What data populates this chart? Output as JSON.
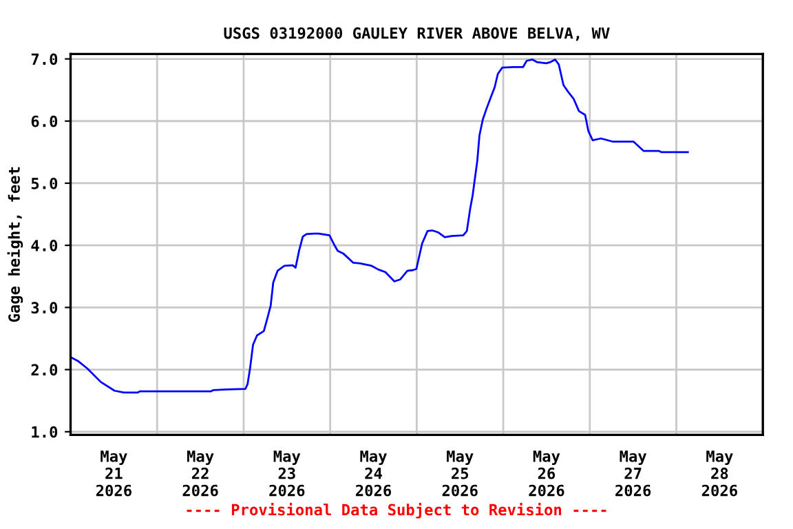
{
  "chart_data": {
    "type": "line",
    "title": "USGS 03192000 GAULEY RIVER ABOVE BELVA, WV",
    "ylabel": "Gage height, feet",
    "annotations": [
      "---- Provisional Data Subject to Revision ----"
    ],
    "x": [
      "2026-05-21T00:00",
      "2026-05-21T02:00",
      "2026-05-21T04:36",
      "2026-05-21T08:24",
      "2026-05-21T12:12",
      "2026-05-21T14:48",
      "2026-05-21T18:36",
      "2026-05-21T19:12",
      "2026-05-22T14:54",
      "2026-05-22T15:36",
      "2026-05-22T19:24",
      "2026-05-23T00:30",
      "2026-05-23T01:06",
      "2026-05-23T01:48",
      "2026-05-23T02:36",
      "2026-05-23T03:42",
      "2026-05-23T05:36",
      "2026-05-23T06:30",
      "2026-05-23T07:30",
      "2026-05-23T08:12",
      "2026-05-23T09:24",
      "2026-05-23T11:18",
      "2026-05-23T13:36",
      "2026-05-23T14:24",
      "2026-05-23T15:24",
      "2026-05-23T16:24",
      "2026-05-23T17:24",
      "2026-05-23T19:36",
      "2026-05-23T20:48",
      "2026-05-23T23:48",
      "2026-05-24T01:18",
      "2026-05-24T02:06",
      "2026-05-24T03:36",
      "2026-05-24T06:24",
      "2026-05-24T08:18",
      "2026-05-24T11:30",
      "2026-05-24T13:24",
      "2026-05-24T15:18",
      "2026-05-24T17:48",
      "2026-05-24T19:24",
      "2026-05-24T21:24",
      "2026-05-24T22:54",
      "2026-05-24T23:54",
      "2026-05-25T01:30",
      "2026-05-25T03:00",
      "2026-05-25T04:18",
      "2026-05-25T05:54",
      "2026-05-25T07:48",
      "2026-05-25T09:42",
      "2026-05-25T12:54",
      "2026-05-25T13:54",
      "2026-05-25T14:48",
      "2026-05-25T15:30",
      "2026-05-25T16:06",
      "2026-05-25T16:48",
      "2026-05-25T17:24",
      "2026-05-25T18:18",
      "2026-05-25T19:18",
      "2026-05-25T20:36",
      "2026-05-25T21:36",
      "2026-05-25T22:30",
      "2026-05-25T23:42",
      "2026-05-26T02:54",
      "2026-05-26T05:30",
      "2026-05-26T06:30",
      "2026-05-26T08:06",
      "2026-05-26T09:18",
      "2026-05-26T11:54",
      "2026-05-26T13:06",
      "2026-05-26T14:24",
      "2026-05-26T15:24",
      "2026-05-26T16:42",
      "2026-05-26T18:00",
      "2026-05-26T19:30",
      "2026-05-26T21:00",
      "2026-05-26T22:42",
      "2026-05-26T23:36",
      "2026-05-27T00:48",
      "2026-05-27T03:06",
      "2026-05-27T06:18",
      "2026-05-27T09:30",
      "2026-05-27T12:06",
      "2026-05-27T13:24",
      "2026-05-27T14:54",
      "2026-05-27T19:06",
      "2026-05-27T19:48",
      "2026-05-28T03:12"
    ],
    "series": [
      {
        "color": "#0000ff",
        "values": [
          2.2,
          2.14,
          2.02,
          1.8,
          1.66,
          1.63,
          1.63,
          1.65,
          1.65,
          1.67,
          1.68,
          1.69,
          1.77,
          2.03,
          2.4,
          2.55,
          2.62,
          2.81,
          3.03,
          3.4,
          3.59,
          3.67,
          3.68,
          3.64,
          3.92,
          4.14,
          4.18,
          4.19,
          4.19,
          4.16,
          3.99,
          3.91,
          3.87,
          3.72,
          3.71,
          3.67,
          3.61,
          3.57,
          3.42,
          3.45,
          3.59,
          3.6,
          3.62,
          4.03,
          4.23,
          4.24,
          4.21,
          4.13,
          4.15,
          4.16,
          4.23,
          4.58,
          4.8,
          5.06,
          5.36,
          5.77,
          6.02,
          6.19,
          6.39,
          6.54,
          6.76,
          6.86,
          6.87,
          6.87,
          6.97,
          6.99,
          6.95,
          6.93,
          6.95,
          6.99,
          6.91,
          6.58,
          6.47,
          6.36,
          6.16,
          6.1,
          5.84,
          5.69,
          5.72,
          5.67,
          5.67,
          5.67,
          5.6,
          5.52,
          5.52,
          5.5,
          5.5
        ]
      }
    ],
    "xlim": [
      "2026-05-21T00:00",
      "2026-05-29T00:00"
    ],
    "xticks": [
      {
        "value": "2026-05-21T00:00",
        "label": null
      },
      {
        "value": "2026-05-21T12:00",
        "label": "May\n21\n2026"
      },
      {
        "value": "2026-05-22T00:00",
        "label": null
      },
      {
        "value": "2026-05-22T12:00",
        "label": "May\n22\n2026"
      },
      {
        "value": "2026-05-23T00:00",
        "label": null
      },
      {
        "value": "2026-05-23T12:00",
        "label": "May\n23\n2026"
      },
      {
        "value": "2026-05-24T00:00",
        "label": null
      },
      {
        "value": "2026-05-24T12:00",
        "label": "May\n24\n2026"
      },
      {
        "value": "2026-05-25T00:00",
        "label": null
      },
      {
        "value": "2026-05-25T12:00",
        "label": "May\n25\n2026"
      },
      {
        "value": "2026-05-26T00:00",
        "label": null
      },
      {
        "value": "2026-05-26T12:00",
        "label": "May\n26\n2026"
      },
      {
        "value": "2026-05-27T00:00",
        "label": null
      },
      {
        "value": "2026-05-27T12:00",
        "label": "May\n27\n2026"
      },
      {
        "value": "2026-05-28T00:00",
        "label": null
      },
      {
        "value": "2026-05-28T12:00",
        "label": "May\n28\n2026"
      },
      {
        "value": "2026-05-29T00:00",
        "label": null
      }
    ],
    "ylim": [
      0.95,
      7.08
    ],
    "yticks": [
      {
        "value": 1,
        "label": "1.0"
      },
      {
        "value": 2,
        "label": "2.0"
      },
      {
        "value": 3,
        "label": "3.0"
      },
      {
        "value": 4,
        "label": "4.0"
      },
      {
        "value": 5,
        "label": "5.0"
      },
      {
        "value": 6,
        "label": "6.0"
      },
      {
        "value": 7,
        "label": "7.0"
      }
    ],
    "grid": true,
    "legend": false,
    "marker": "none",
    "line_style": "solid"
  }
}
